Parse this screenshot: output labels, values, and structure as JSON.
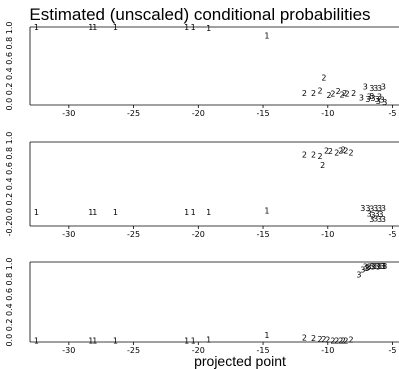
{
  "chart_data": {
    "type": "scatter",
    "title": "Estimated (unscaled) conditional probabilities",
    "xlabel": "projected point",
    "x_ticks": [
      -30,
      -25,
      -20,
      -15,
      -10,
      -5
    ],
    "x_tick_labels": [
      "-30",
      "-25",
      "-20",
      "-15",
      "-10",
      "-5"
    ],
    "xlim": [
      -33,
      -4.5
    ],
    "panels": [
      {
        "name": "panel-1",
        "ylim": [
          -0.02,
          1.0
        ],
        "y_tick_label": "0.0 0.2 0.4 0.6 0.8 1.0",
        "points": [
          {
            "label": "1",
            "x": -32.5,
            "y": 1.0
          },
          {
            "label": "1",
            "x": -28.3,
            "y": 1.0
          },
          {
            "label": "1",
            "x": -28.0,
            "y": 1.0
          },
          {
            "label": "1",
            "x": -26.4,
            "y": 1.0
          },
          {
            "label": "1",
            "x": -20.9,
            "y": 1.0
          },
          {
            "label": "1",
            "x": -20.4,
            "y": 1.0
          },
          {
            "label": "1",
            "x": -19.2,
            "y": 0.99
          },
          {
            "label": "1",
            "x": -14.7,
            "y": 0.89
          },
          {
            "label": "2",
            "x": -11.8,
            "y": 0.14
          },
          {
            "label": "2",
            "x": -11.1,
            "y": 0.14
          },
          {
            "label": "2",
            "x": -10.6,
            "y": 0.17
          },
          {
            "label": "2",
            "x": -10.3,
            "y": 0.34
          },
          {
            "label": "2",
            "x": -9.9,
            "y": 0.11
          },
          {
            "label": "2",
            "x": -9.6,
            "y": 0.13
          },
          {
            "label": "2",
            "x": -9.2,
            "y": 0.16
          },
          {
            "label": "2",
            "x": -8.9,
            "y": 0.12
          },
          {
            "label": "2",
            "x": -8.7,
            "y": 0.14
          },
          {
            "label": "2",
            "x": -8.5,
            "y": 0.13
          },
          {
            "label": "2",
            "x": -8.0,
            "y": 0.14
          },
          {
            "label": "3",
            "x": -7.4,
            "y": 0.08
          },
          {
            "label": "3",
            "x": -7.1,
            "y": 0.22
          },
          {
            "label": "3",
            "x": -6.9,
            "y": 0.06
          },
          {
            "label": "3",
            "x": -6.6,
            "y": 0.2
          },
          {
            "label": "3",
            "x": -6.3,
            "y": 0.2
          },
          {
            "label": "3",
            "x": -6.0,
            "y": 0.2
          },
          {
            "label": "3",
            "x": -5.7,
            "y": 0.22
          },
          {
            "label": "3",
            "x": -6.8,
            "y": 0.09
          },
          {
            "label": "3",
            "x": -6.5,
            "y": 0.07
          },
          {
            "label": "3",
            "x": -6.2,
            "y": 0.06
          },
          {
            "label": "3",
            "x": -6.0,
            "y": 0.09
          },
          {
            "label": "3",
            "x": -5.8,
            "y": 0.05
          },
          {
            "label": "3",
            "x": -6.6,
            "y": 0.1
          },
          {
            "label": "3",
            "x": -6.1,
            "y": 0.03
          },
          {
            "label": "3",
            "x": -5.6,
            "y": 0.02
          }
        ]
      },
      {
        "name": "panel-2",
        "ylim": [
          -0.2,
          1.0
        ],
        "y_tick_label": "-0.20.0 0.2 0.4 0.6 0.8 1.0",
        "points": [
          {
            "label": "1",
            "x": -32.5,
            "y": 0.0
          },
          {
            "label": "1",
            "x": -28.3,
            "y": 0.0
          },
          {
            "label": "1",
            "x": -28.0,
            "y": 0.0
          },
          {
            "label": "1",
            "x": -26.4,
            "y": 0.0
          },
          {
            "label": "1",
            "x": -20.9,
            "y": 0.0
          },
          {
            "label": "1",
            "x": -20.4,
            "y": 0.0
          },
          {
            "label": "1",
            "x": -19.2,
            "y": 0.0
          },
          {
            "label": "1",
            "x": -14.7,
            "y": 0.02
          },
          {
            "label": "2",
            "x": -11.8,
            "y": 0.82
          },
          {
            "label": "2",
            "x": -11.1,
            "y": 0.82
          },
          {
            "label": "2",
            "x": -10.6,
            "y": 0.8
          },
          {
            "label": "2",
            "x": -10.4,
            "y": 0.67
          },
          {
            "label": "2",
            "x": -10.1,
            "y": 0.88
          },
          {
            "label": "2",
            "x": -9.8,
            "y": 0.87
          },
          {
            "label": "2",
            "x": -9.3,
            "y": 0.85
          },
          {
            "label": "2",
            "x": -9.0,
            "y": 0.88
          },
          {
            "label": "2",
            "x": -8.8,
            "y": 0.89
          },
          {
            "label": "2",
            "x": -8.6,
            "y": 0.88
          },
          {
            "label": "2",
            "x": -8.2,
            "y": 0.85
          },
          {
            "label": "3",
            "x": -7.3,
            "y": 0.06
          },
          {
            "label": "3",
            "x": -6.9,
            "y": 0.06
          },
          {
            "label": "3",
            "x": -6.6,
            "y": 0.05
          },
          {
            "label": "3",
            "x": -6.3,
            "y": 0.06
          },
          {
            "label": "3",
            "x": -6.0,
            "y": 0.06
          },
          {
            "label": "3",
            "x": -5.7,
            "y": 0.06
          },
          {
            "label": "3",
            "x": -6.8,
            "y": -0.02
          },
          {
            "label": "3",
            "x": -6.5,
            "y": -0.04
          },
          {
            "label": "3",
            "x": -6.2,
            "y": -0.02
          },
          {
            "label": "3",
            "x": -5.9,
            "y": -0.03
          },
          {
            "label": "3",
            "x": -6.6,
            "y": -0.1
          },
          {
            "label": "3",
            "x": -6.3,
            "y": -0.09
          },
          {
            "label": "3",
            "x": -6.0,
            "y": -0.1
          },
          {
            "label": "3",
            "x": -5.7,
            "y": -0.1
          }
        ]
      },
      {
        "name": "panel-3",
        "ylim": [
          -0.02,
          1.02
        ],
        "y_tick_label": "0.0 0.2 0.4 0.6 0.8 1.0",
        "points": [
          {
            "label": "1",
            "x": -32.5,
            "y": 0.0
          },
          {
            "label": "1",
            "x": -28.3,
            "y": 0.0
          },
          {
            "label": "1",
            "x": -28.0,
            "y": 0.0
          },
          {
            "label": "1",
            "x": -26.4,
            "y": 0.0
          },
          {
            "label": "1",
            "x": -20.9,
            "y": 0.0
          },
          {
            "label": "1",
            "x": -20.4,
            "y": 0.0
          },
          {
            "label": "1",
            "x": -19.2,
            "y": 0.01
          },
          {
            "label": "1",
            "x": -14.7,
            "y": 0.07
          },
          {
            "label": "2",
            "x": -11.8,
            "y": 0.04
          },
          {
            "label": "2",
            "x": -11.1,
            "y": 0.03
          },
          {
            "label": "2",
            "x": -10.6,
            "y": 0.02
          },
          {
            "label": "2",
            "x": -10.3,
            "y": 0.02
          },
          {
            "label": "2",
            "x": -10.0,
            "y": 0.01
          },
          {
            "label": "2",
            "x": -9.6,
            "y": 0.0
          },
          {
            "label": "2",
            "x": -9.3,
            "y": 0.0
          },
          {
            "label": "2",
            "x": -9.0,
            "y": 0.0
          },
          {
            "label": "2",
            "x": -8.8,
            "y": 0.0
          },
          {
            "label": "2",
            "x": -8.6,
            "y": 0.0
          },
          {
            "label": "2",
            "x": -8.2,
            "y": 0.01
          },
          {
            "label": "3",
            "x": -7.6,
            "y": 0.86
          },
          {
            "label": "3",
            "x": -7.3,
            "y": 0.92
          },
          {
            "label": "3",
            "x": -7.0,
            "y": 0.94
          },
          {
            "label": "3",
            "x": -6.8,
            "y": 0.96
          },
          {
            "label": "3",
            "x": -6.6,
            "y": 0.97
          },
          {
            "label": "3",
            "x": -6.4,
            "y": 0.97
          },
          {
            "label": "3",
            "x": -6.2,
            "y": 0.97
          },
          {
            "label": "3",
            "x": -6.0,
            "y": 0.97
          },
          {
            "label": "3",
            "x": -5.8,
            "y": 0.97
          },
          {
            "label": "3",
            "x": -5.6,
            "y": 0.97
          },
          {
            "label": "3",
            "x": -6.9,
            "y": 0.95
          },
          {
            "label": "3",
            "x": -6.5,
            "y": 0.96
          },
          {
            "label": "3",
            "x": -6.1,
            "y": 0.96
          },
          {
            "label": "3",
            "x": -5.7,
            "y": 0.97
          },
          {
            "label": "3",
            "x": -7.1,
            "y": 0.96
          }
        ]
      }
    ]
  }
}
